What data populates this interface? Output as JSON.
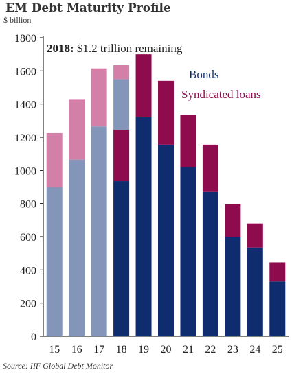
{
  "chart_data": {
    "type": "bar",
    "stacked": true,
    "title": "EM Debt Maturity Profile",
    "ylabel": "$ billion",
    "xlabel": "",
    "ylim": [
      0,
      1800
    ],
    "yticks": [
      0,
      200,
      400,
      600,
      800,
      1000,
      1200,
      1400,
      1600,
      1800
    ],
    "grid": false,
    "categories": [
      "15",
      "16",
      "17",
      "18",
      "19",
      "20",
      "21",
      "22",
      "23",
      "24",
      "25"
    ],
    "series": [
      {
        "name": "Bonds",
        "values": [
          900,
          1065,
          1265,
          1550,
          1320,
          1155,
          1020,
          870,
          600,
          535,
          330
        ]
      },
      {
        "name": "Syndicated loans",
        "values": [
          325,
          365,
          350,
          85,
          380,
          385,
          315,
          285,
          195,
          145,
          115
        ]
      }
    ],
    "partial": {
      "category": "18",
      "bonds_remaining": 935,
      "loans_remaining": 310
    },
    "annotation": {
      "bold": "2018:",
      "text": " $1.2 trillion remaining"
    },
    "legend": {
      "placement": "top-right"
    },
    "colors": {
      "bonds": "#0f2d6e",
      "loans": "#8e0b4e",
      "bonds_past": "#8396b9",
      "loans_past": "#d47fa8",
      "axis": "#000000"
    },
    "source": "Source: IIF Global Debt Monitor"
  }
}
